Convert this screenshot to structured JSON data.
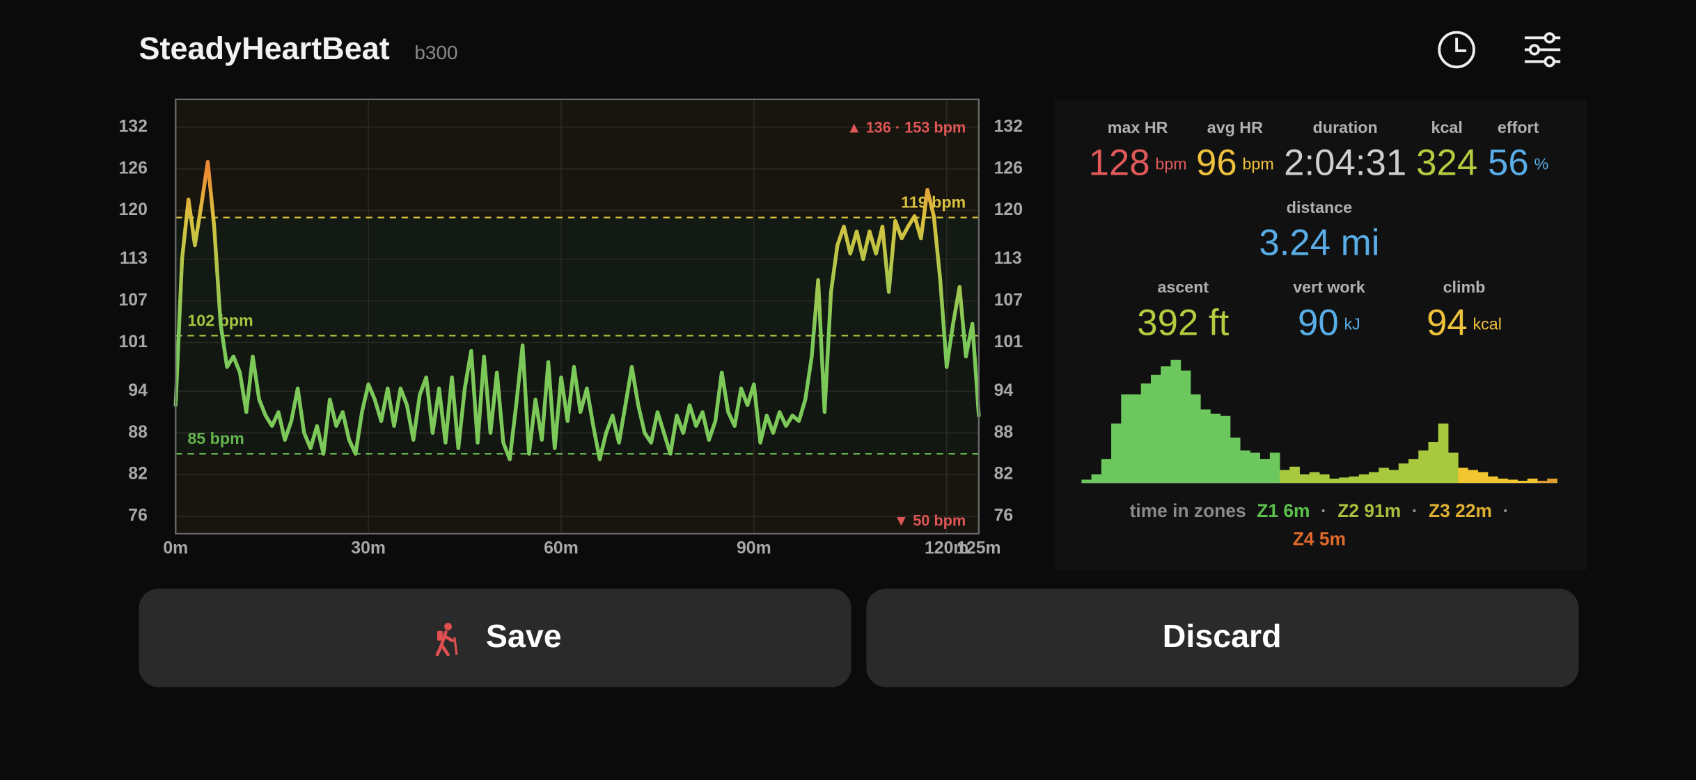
{
  "header": {
    "title": "SteadyHeartBeat",
    "badge": "b300"
  },
  "chart_data": [
    {
      "type": "line",
      "x": [
        0,
        1,
        2,
        3,
        4,
        5,
        6,
        7,
        8,
        9,
        10,
        11,
        12,
        13,
        14,
        15,
        16,
        17,
        18,
        19,
        20,
        21,
        22,
        23,
        24,
        25,
        26,
        27,
        28,
        29,
        30,
        31,
        32,
        33,
        34,
        35,
        36,
        37,
        38,
        39,
        40,
        41,
        42,
        43,
        44,
        45,
        46,
        47,
        48,
        49,
        50,
        51,
        52,
        53,
        54,
        55,
        56,
        57,
        58,
        59,
        60,
        61,
        62,
        63,
        64,
        65,
        66,
        67,
        68,
        69,
        70,
        71,
        72,
        73,
        74,
        75,
        76,
        77,
        78,
        79,
        80,
        81,
        82,
        83,
        84,
        85,
        86,
        87,
        88,
        89,
        90,
        91,
        92,
        93,
        94,
        95,
        96,
        97,
        98,
        99,
        100,
        101,
        102,
        103,
        104,
        105,
        106,
        107,
        108,
        109,
        110,
        111,
        112,
        113,
        114,
        115,
        116,
        117,
        118,
        119,
        120,
        121,
        122,
        123,
        124,
        125
      ],
      "series": [
        {
          "color": "#7cc95a",
          "values": [
            92,
            113,
            121.6,
            115,
            120.8,
            127,
            117.7,
            103.7,
            97.5,
            99,
            96.7,
            91,
            99,
            92.8,
            90.5,
            89,
            91,
            87,
            89.7,
            94.4,
            88,
            85.8,
            89,
            85,
            92.8,
            89,
            91,
            87,
            85,
            91,
            95,
            92.8,
            89.7,
            94.4,
            89,
            94.4,
            92,
            87,
            93.5,
            96,
            88,
            94.4,
            86.6,
            96,
            85.8,
            94.4,
            99.8,
            86.6,
            99,
            88,
            96.7,
            86.6,
            84.2,
            92,
            100.6,
            85,
            92.8,
            87,
            98.2,
            85.8,
            96,
            89.7,
            97.5,
            91,
            94.4,
            89,
            84.2,
            88,
            90.5,
            86.6,
            92,
            97.5,
            92,
            88,
            86.6,
            91,
            88,
            85,
            90.5,
            88,
            92,
            89,
            91,
            87,
            89.7,
            96.7,
            91,
            89,
            94.4,
            92,
            95,
            86.6,
            90.5,
            88,
            91,
            89,
            90.5,
            89.7,
            92.8,
            99,
            110,
            91,
            108.3,
            115,
            117.7,
            113.8,
            117,
            113,
            117,
            113.8,
            117.7,
            108.3,
            118.5,
            116,
            117.7,
            119.2,
            116,
            123,
            119.2,
            110,
            97.5,
            103.7,
            109,
            99,
            103.7,
            90.5
          ]
        }
      ],
      "xlim": [
        0,
        125
      ],
      "xticks": [
        {
          "value": 0,
          "label": "0m"
        },
        {
          "value": 30,
          "label": "30m"
        },
        {
          "value": 60,
          "label": "60m"
        },
        {
          "value": 90,
          "label": "90m"
        },
        {
          "value": 120,
          "label": "120m"
        },
        {
          "value": 125,
          "label": "125m"
        }
      ],
      "ylim": [
        73.5,
        136
      ],
      "yticks": [
        76,
        82,
        88,
        94,
        101,
        107,
        113,
        120,
        126,
        132
      ],
      "grid": true,
      "peak_color": "#ee8a35",
      "reference_lines": [
        {
          "value": 119,
          "label": "119 bpm",
          "color": "#d9c23e"
        },
        {
          "value": 102,
          "label": "102 bpm",
          "color": "#a9c43f"
        },
        {
          "value": 85,
          "label": "85 bpm",
          "color": "#62b54c"
        }
      ],
      "annotations": [
        {
          "text": "▲ 136 · 153 bpm",
          "color": "#e05555",
          "corner": "top-right"
        },
        {
          "text": "▼ 50 bpm",
          "color": "#e05555",
          "corner": "bottom-right"
        }
      ]
    },
    {
      "type": "bar",
      "values": [
        3,
        8,
        22,
        55,
        82,
        82,
        92,
        100,
        108,
        114,
        104,
        82,
        68,
        64,
        62,
        42,
        30,
        28,
        22,
        28,
        12,
        15,
        8,
        10,
        8,
        4,
        5,
        6,
        8,
        10,
        14,
        12,
        18,
        22,
        30,
        38,
        55,
        28,
        14,
        12,
        10,
        6,
        4,
        3,
        2,
        4,
        2,
        4
      ],
      "colors": [
        "#6cc85c",
        "#6cc85c",
        "#6cc85c",
        "#6cc85c",
        "#6cc85c",
        "#6cc85c",
        "#6cc85c",
        "#6cc85c",
        "#6cc85c",
        "#6cc85c",
        "#6cc85c",
        "#6cc85c",
        "#6cc85c",
        "#6cc85c",
        "#6cc85c",
        "#6cc85c",
        "#6cc85c",
        "#6cc85c",
        "#6cc85c",
        "#6cc85c",
        "#a8c83e",
        "#a8c83e",
        "#a8c83e",
        "#a8c83e",
        "#a8c83e",
        "#a8c83e",
        "#a8c83e",
        "#a8c83e",
        "#a8c83e",
        "#a8c83e",
        "#a8c83e",
        "#a8c83e",
        "#a8c83e",
        "#a8c83e",
        "#a8c83e",
        "#a8c83e",
        "#a8c83e",
        "#a8c83e",
        "#f2c630",
        "#f2c630",
        "#f2c630",
        "#f2c630",
        "#f2c630",
        "#f2c630",
        "#f2c630",
        "#f2c630",
        "#e0a030",
        "#e0a030"
      ]
    }
  ],
  "stats": [
    {
      "label": "max HR",
      "value": 128,
      "unit": "bpm",
      "color": "#e05a5a"
    },
    {
      "label": "avg HR",
      "value": 96,
      "unit": "bpm",
      "color": "#f0c23c"
    },
    {
      "label": "duration",
      "value": "2:04:31",
      "color": "#cfcfcf"
    },
    {
      "label": "kcal",
      "value": 324,
      "color": "#b4cc40"
    },
    {
      "label": "effort",
      "value": 56,
      "unit": "%",
      "color": "#5aaee8"
    },
    {
      "label": "distance",
      "value": "3.24 mi",
      "color": "#5aaee8"
    },
    {
      "label": "ascent",
      "value": "392 ft",
      "color": "#b4cc40"
    },
    {
      "label": "vert work",
      "value": 90,
      "unit": "kJ",
      "color": "#5aaee8"
    },
    {
      "label": "climb",
      "value": 94,
      "unit": "kcal",
      "color": "#f0c23c"
    }
  ],
  "zones": {
    "label": "time in zones",
    "separator": "·",
    "items": [
      {
        "text": "Z1 6m",
        "color": "#5cc04c"
      },
      {
        "text": "Z2 91m",
        "color": "#a8c03e"
      },
      {
        "text": "Z3 22m",
        "color": "#e0b030"
      },
      {
        "text": "Z4 5m",
        "color": "#e06a2a"
      }
    ]
  },
  "buttons": {
    "save": "Save",
    "discard": "Discard"
  }
}
